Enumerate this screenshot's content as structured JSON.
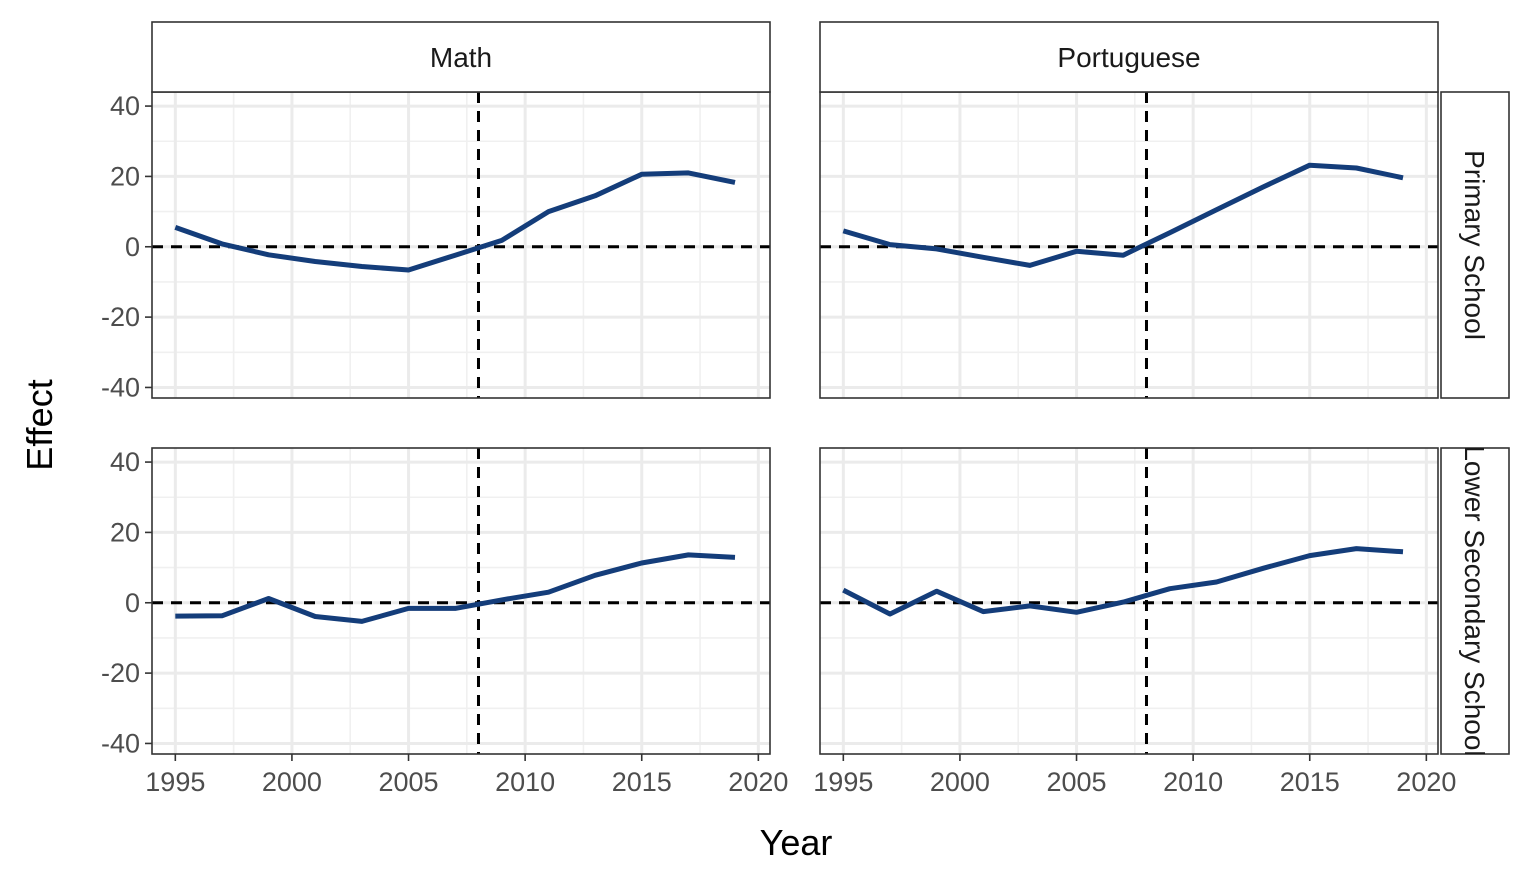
{
  "chart_data": {
    "type": "line",
    "title": "",
    "xlabel": "Year",
    "ylabel": "Effect",
    "col_facets": [
      "Math",
      "Portuguese"
    ],
    "row_facets": [
      "Primary School",
      "Lower Secondary School"
    ],
    "xlim": [
      1994,
      2020.5
    ],
    "ylim": [
      -43,
      44
    ],
    "x_ticks": [
      "1995",
      "2000",
      "2005",
      "2010",
      "2015",
      "2020"
    ],
    "y_ticks": [
      "40",
      "20",
      "0",
      "-20",
      "-40"
    ],
    "vline_x": 2008,
    "hline_y": 0,
    "grid": true,
    "legend": "none",
    "line_color": "#143d7a",
    "panels": [
      {
        "col": "Math",
        "row": "Primary School",
        "x": [
          1995,
          1997,
          1999,
          2001,
          2003,
          2005,
          2007,
          2009,
          2011,
          2013,
          2015,
          2017,
          2019
        ],
        "y": [
          5.5,
          0.8,
          -2.3,
          -4.2,
          -5.6,
          -6.6,
          -2.4,
          1.8,
          10,
          14.5,
          20.6,
          21,
          18.3
        ]
      },
      {
        "col": "Portuguese",
        "row": "Primary School",
        "x": [
          1995,
          1997,
          1999,
          2001,
          2003,
          2005,
          2007,
          2009,
          2011,
          2013,
          2015,
          2017,
          2019
        ],
        "y": [
          4.5,
          0.6,
          -0.6,
          -3,
          -5.3,
          -1.3,
          -2.4,
          4,
          10.5,
          17,
          23.2,
          22.4,
          19.6
        ]
      },
      {
        "col": "Math",
        "row": "Lower Secondary School",
        "x": [
          1995,
          1997,
          1999,
          2001,
          2003,
          2005,
          2007,
          2009,
          2011,
          2013,
          2015,
          2017,
          2019
        ],
        "y": [
          -3.8,
          -3.7,
          1.2,
          -3.9,
          -5.3,
          -1.6,
          -1.6,
          0.8,
          3,
          7.8,
          11.3,
          13.6,
          12.9
        ]
      },
      {
        "col": "Portuguese",
        "row": "Lower Secondary School",
        "x": [
          1995,
          1997,
          1999,
          2001,
          2003,
          2005,
          2007,
          2009,
          2011,
          2013,
          2015,
          2017,
          2019
        ],
        "y": [
          3.6,
          -3.2,
          3.3,
          -2.5,
          -0.9,
          -2.7,
          0.2,
          4,
          5.9,
          9.8,
          13.4,
          15.4,
          14.5
        ]
      }
    ]
  }
}
